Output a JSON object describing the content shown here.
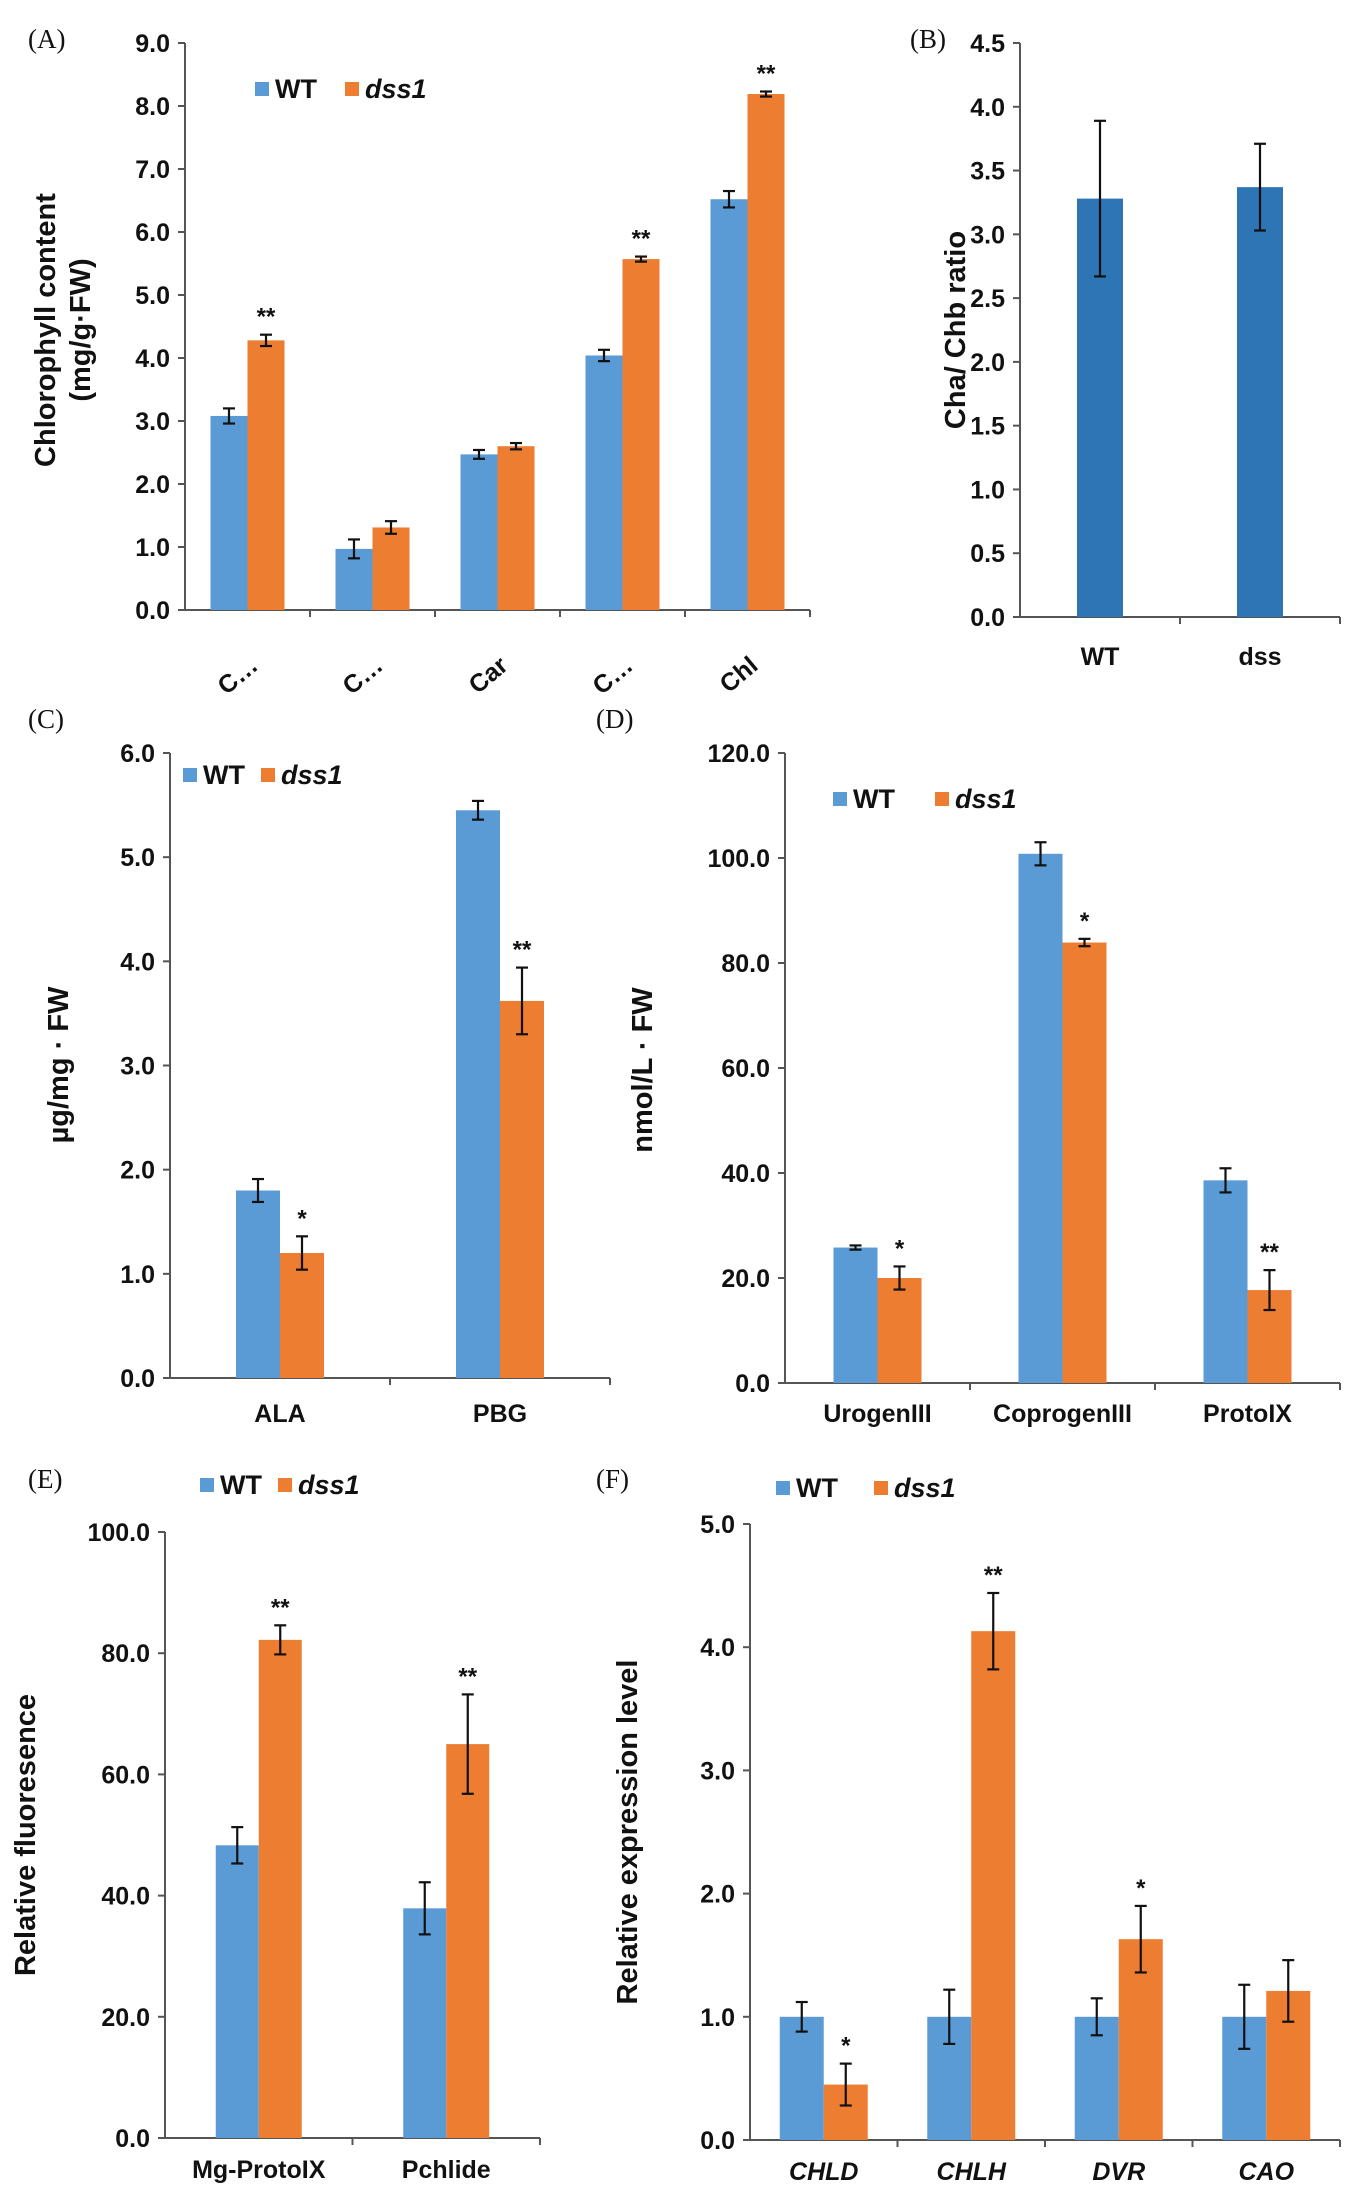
{
  "colors": {
    "wt": "#5b9bd5",
    "dss1": "#ed7d31",
    "single": "#2e75b6"
  },
  "chart_data": [
    {
      "type": "bar",
      "panel": "(A)",
      "ylabel_lines": [
        "Chlorophyll content",
        "(mg/g·FW)"
      ],
      "ylim": [
        0,
        9
      ],
      "yticks": [
        "0.0",
        "1.0",
        "2.0",
        "3.0",
        "4.0",
        "5.0",
        "6.0",
        "7.0",
        "8.0",
        "9.0"
      ],
      "categories": [
        "C…",
        "C…",
        "Car",
        "C…",
        "Chl"
      ],
      "cat_rotate": true,
      "cat_italic": false,
      "legend": [
        "WT",
        "dss1"
      ],
      "series": [
        {
          "name": "WT",
          "values": [
            3.08,
            0.97,
            2.47,
            4.04,
            6.52
          ],
          "errors": [
            0.12,
            0.15,
            0.07,
            0.09,
            0.13
          ]
        },
        {
          "name": "dss1",
          "values": [
            4.28,
            1.31,
            2.6,
            5.57,
            8.19
          ],
          "errors": [
            0.09,
            0.1,
            0.05,
            0.04,
            0.04
          ]
        }
      ],
      "significance": [
        "**",
        "",
        "",
        "**",
        "**"
      ]
    },
    {
      "type": "bar",
      "panel": "(B)",
      "ylabel_lines": [
        "Cha/ Chb ratio"
      ],
      "ylim": [
        0,
        4.5
      ],
      "yticks": [
        "0.0",
        "0.5",
        "1.0",
        "1.5",
        "2.0",
        "2.5",
        "3.0",
        "3.5",
        "4.0",
        "4.5"
      ],
      "categories": [
        "WT",
        "dss"
      ],
      "cat_rotate": false,
      "cat_italic": false,
      "legend": [],
      "series": [
        {
          "name": "ratio",
          "values": [
            3.28,
            3.37
          ],
          "errors": [
            0.61,
            0.34
          ]
        }
      ],
      "significance": [
        "",
        ""
      ]
    },
    {
      "type": "bar",
      "panel": "(C)",
      "ylabel_lines": [
        "µg/mg · FW"
      ],
      "ylim": [
        0,
        6
      ],
      "yticks": [
        "0.0",
        "1.0",
        "2.0",
        "3.0",
        "4.0",
        "5.0",
        "6.0"
      ],
      "categories": [
        "ALA",
        "PBG"
      ],
      "cat_rotate": false,
      "cat_italic": false,
      "legend": [
        "WT",
        "dss1"
      ],
      "series": [
        {
          "name": "WT",
          "values": [
            1.8,
            5.45
          ],
          "errors": [
            0.11,
            0.09
          ]
        },
        {
          "name": "dss1",
          "values": [
            1.2,
            3.62
          ],
          "errors": [
            0.16,
            0.32
          ]
        }
      ],
      "significance": [
        "*",
        "**"
      ]
    },
    {
      "type": "bar",
      "panel": "(D)",
      "ylabel_lines": [
        "nmol/L · FW"
      ],
      "ylim": [
        0,
        120
      ],
      "yticks": [
        "0.0",
        "20.0",
        "40.0",
        "60.0",
        "80.0",
        "100.0",
        "120.0"
      ],
      "categories": [
        "UrogenIII",
        "CoprogenIII",
        "ProtoIX"
      ],
      "cat_rotate": false,
      "cat_italic": false,
      "legend": [
        "WT",
        "dss1"
      ],
      "series": [
        {
          "name": "WT",
          "values": [
            25.8,
            100.8,
            38.6
          ],
          "errors": [
            0.4,
            2.2,
            2.3
          ]
        },
        {
          "name": "dss1",
          "values": [
            20.0,
            83.9,
            17.7
          ],
          "errors": [
            2.2,
            0.7,
            3.8
          ]
        }
      ],
      "significance": [
        "*",
        "*",
        "**"
      ]
    },
    {
      "type": "bar",
      "panel": "(E)",
      "ylabel_lines": [
        "Relative fluoresence"
      ],
      "ylim": [
        0,
        100
      ],
      "yticks": [
        "0.0",
        "20.0",
        "40.0",
        "60.0",
        "80.0",
        "100.0"
      ],
      "categories": [
        "Mg-ProtoIX",
        "Pchlide"
      ],
      "cat_rotate": false,
      "cat_italic": false,
      "legend": [
        "WT",
        "dss1"
      ],
      "series": [
        {
          "name": "WT",
          "values": [
            48.3,
            37.9
          ],
          "errors": [
            3.0,
            4.3
          ]
        },
        {
          "name": "dss1",
          "values": [
            82.2,
            65.0
          ],
          "errors": [
            2.4,
            8.2
          ]
        }
      ],
      "significance": [
        "**",
        "**"
      ]
    },
    {
      "type": "bar",
      "panel": "(F)",
      "ylabel_lines": [
        "Relative expression level"
      ],
      "ylim": [
        0,
        5
      ],
      "yticks": [
        "0.0",
        "1.0",
        "2.0",
        "3.0",
        "4.0",
        "5.0"
      ],
      "categories": [
        "CHLD",
        "CHLH",
        "DVR",
        "CAO"
      ],
      "cat_rotate": false,
      "cat_italic": true,
      "legend": [
        "WT",
        "dss1"
      ],
      "series": [
        {
          "name": "WT",
          "values": [
            1.0,
            1.0,
            1.0,
            1.0
          ],
          "errors": [
            0.12,
            0.22,
            0.15,
            0.26
          ]
        },
        {
          "name": "dss1",
          "values": [
            0.45,
            4.13,
            1.63,
            1.21
          ],
          "errors": [
            0.17,
            0.31,
            0.27,
            0.25
          ]
        }
      ],
      "significance": [
        "*",
        "**",
        "*",
        ""
      ]
    }
  ]
}
